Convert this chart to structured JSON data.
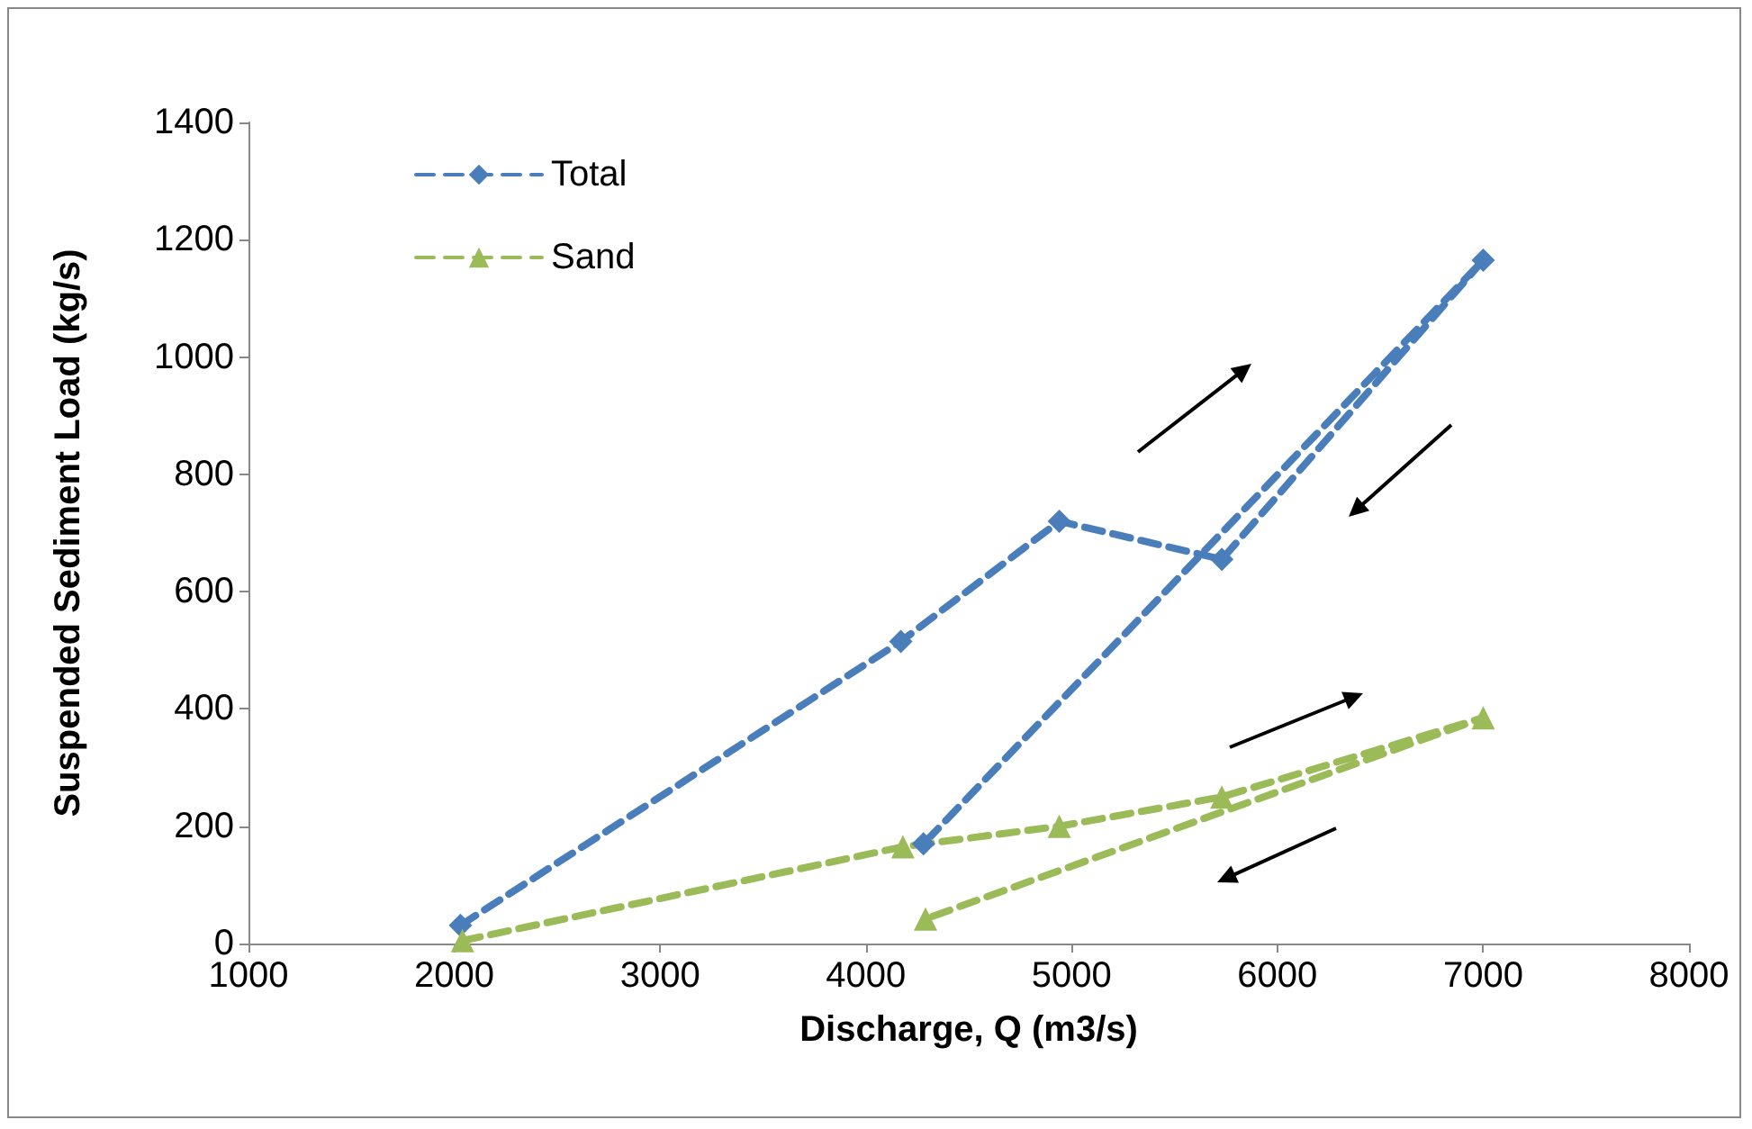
{
  "chart_data": {
    "type": "line",
    "xlabel": "Discharge, Q (m3/s)",
    "ylabel": "Suspended Sediment Load (kg/s)",
    "xlim": [
      1000,
      8000
    ],
    "xticks": [
      1000,
      2000,
      3000,
      4000,
      5000,
      6000,
      7000,
      8000
    ],
    "ylim": [
      0,
      1400
    ],
    "yticks": [
      0,
      200,
      400,
      600,
      800,
      1000,
      1200,
      1400
    ],
    "grid": false,
    "legend": "top left",
    "line_style": "dashed",
    "series": [
      {
        "name": "Total",
        "color": "#4a7ebb",
        "marker": "diamond",
        "x": [
          2030,
          4170,
          4940,
          5730,
          7000,
          4280
        ],
        "values": [
          31,
          515,
          720,
          655,
          1165,
          170
        ]
      },
      {
        "name": "Sand",
        "color": "#9bbb59",
        "marker": "triangle",
        "x": [
          2040,
          4180,
          4940,
          5730,
          7000,
          4290
        ],
        "values": [
          5,
          165,
          200,
          250,
          385,
          42
        ]
      }
    ]
  }
}
